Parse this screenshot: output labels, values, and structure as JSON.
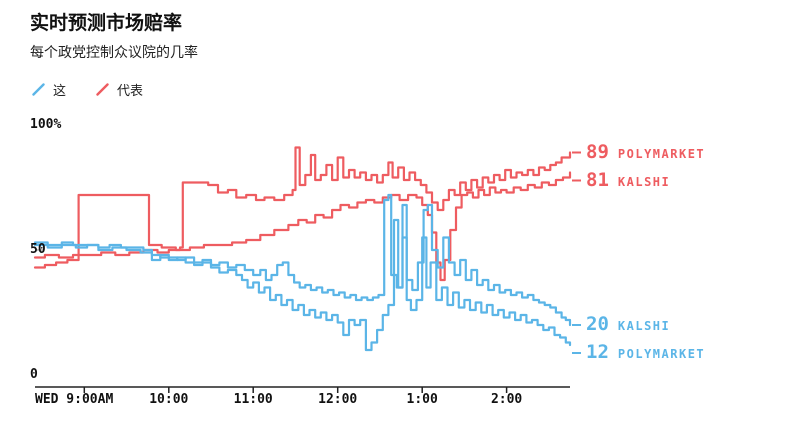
{
  "legend": {
    "items": [
      {
        "label": "这",
        "color": "#5bb5e7"
      },
      {
        "label": "代表",
        "color": "#ee5c60"
      }
    ]
  },
  "chart_data": {
    "type": "line",
    "title": "实时预测市场赔率",
    "subtitle": "每个政党控制众议院的几率",
    "x_unit": "minutes after Wednesday 9:00AM",
    "t_min": -35,
    "t_max": 345,
    "ylim": [
      0,
      100
    ],
    "grid": "off",
    "legend_position": "top-left",
    "x_ticks": [
      {
        "t": 0,
        "label": "WED 9:00AM"
      },
      {
        "t": 60,
        "label": "10:00"
      },
      {
        "t": 120,
        "label": "11:00"
      },
      {
        "t": 180,
        "label": "12:00"
      },
      {
        "t": 240,
        "label": "1:00"
      },
      {
        "t": 300,
        "label": "2:00"
      }
    ],
    "y_ticks": [
      {
        "v": 100,
        "label": "100%"
      },
      {
        "v": 50,
        "label": "50"
      },
      {
        "v": 0,
        "label": "0"
      }
    ],
    "series": [
      {
        "id": "rep-kalshi",
        "name": "代表 KALSHI",
        "color": "#ee5c60",
        "end_label": {
          "value": "81",
          "source": "KALSHI"
        },
        "points": [
          [
            -35,
            43
          ],
          [
            -28,
            44
          ],
          [
            -20,
            45
          ],
          [
            -12,
            46
          ],
          [
            -5,
            46
          ],
          [
            -4,
            72
          ],
          [
            5,
            72
          ],
          [
            15,
            72
          ],
          [
            25,
            72
          ],
          [
            35,
            72
          ],
          [
            44,
            72
          ],
          [
            46,
            52
          ],
          [
            55,
            51
          ],
          [
            65,
            50
          ],
          [
            75,
            51
          ],
          [
            85,
            52
          ],
          [
            95,
            52
          ],
          [
            105,
            53
          ],
          [
            115,
            54
          ],
          [
            125,
            56
          ],
          [
            135,
            58
          ],
          [
            145,
            60
          ],
          [
            152,
            62
          ],
          [
            158,
            61
          ],
          [
            164,
            64
          ],
          [
            170,
            63
          ],
          [
            176,
            66
          ],
          [
            182,
            68
          ],
          [
            188,
            67
          ],
          [
            194,
            69
          ],
          [
            200,
            70
          ],
          [
            206,
            69
          ],
          [
            212,
            71
          ],
          [
            218,
            72
          ],
          [
            224,
            70
          ],
          [
            230,
            72
          ],
          [
            236,
            71
          ],
          [
            240,
            68
          ],
          [
            244,
            64
          ],
          [
            247,
            57
          ],
          [
            250,
            45
          ],
          [
            253,
            38
          ],
          [
            256,
            46
          ],
          [
            260,
            58
          ],
          [
            264,
            67
          ],
          [
            268,
            72
          ],
          [
            272,
            73
          ],
          [
            276,
            71
          ],
          [
            280,
            74
          ],
          [
            284,
            72
          ],
          [
            288,
            75
          ],
          [
            292,
            73
          ],
          [
            296,
            74
          ],
          [
            300,
            73
          ],
          [
            305,
            75
          ],
          [
            310,
            74
          ],
          [
            315,
            76
          ],
          [
            320,
            75
          ],
          [
            325,
            77
          ],
          [
            330,
            76
          ],
          [
            335,
            78
          ],
          [
            340,
            79
          ],
          [
            345,
            81
          ]
        ]
      },
      {
        "id": "rep-polymarket",
        "name": "代表 POLYMARKET",
        "color": "#ee5c60",
        "end_label": {
          "value": "89",
          "source": "POLYMARKET"
        },
        "points": [
          [
            -35,
            47
          ],
          [
            -28,
            48
          ],
          [
            -18,
            47
          ],
          [
            -8,
            48
          ],
          [
            2,
            48
          ],
          [
            12,
            49
          ],
          [
            22,
            48
          ],
          [
            32,
            49
          ],
          [
            42,
            50
          ],
          [
            52,
            49
          ],
          [
            60,
            50
          ],
          [
            68,
            51
          ],
          [
            70,
            77
          ],
          [
            80,
            77
          ],
          [
            88,
            76
          ],
          [
            95,
            73
          ],
          [
            102,
            74
          ],
          [
            108,
            71
          ],
          [
            115,
            72
          ],
          [
            122,
            70
          ],
          [
            128,
            71
          ],
          [
            135,
            70
          ],
          [
            142,
            72
          ],
          [
            148,
            74
          ],
          [
            150,
            91
          ],
          [
            153,
            76
          ],
          [
            157,
            80
          ],
          [
            161,
            88
          ],
          [
            164,
            78
          ],
          [
            168,
            80
          ],
          [
            172,
            84
          ],
          [
            176,
            78
          ],
          [
            180,
            87
          ],
          [
            184,
            79
          ],
          [
            188,
            82
          ],
          [
            192,
            79
          ],
          [
            196,
            81
          ],
          [
            200,
            78
          ],
          [
            204,
            80
          ],
          [
            208,
            77
          ],
          [
            212,
            80
          ],
          [
            216,
            85
          ],
          [
            219,
            79
          ],
          [
            223,
            83
          ],
          [
            227,
            78
          ],
          [
            231,
            81
          ],
          [
            235,
            78
          ],
          [
            239,
            76
          ],
          [
            243,
            73
          ],
          [
            247,
            69
          ],
          [
            251,
            66
          ],
          [
            255,
            70
          ],
          [
            259,
            74
          ],
          [
            263,
            72
          ],
          [
            267,
            77
          ],
          [
            271,
            74
          ],
          [
            275,
            78
          ],
          [
            279,
            75
          ],
          [
            283,
            79
          ],
          [
            287,
            77
          ],
          [
            291,
            80
          ],
          [
            295,
            78
          ],
          [
            299,
            82
          ],
          [
            303,
            79
          ],
          [
            307,
            81
          ],
          [
            311,
            80
          ],
          [
            315,
            82
          ],
          [
            319,
            80
          ],
          [
            323,
            83
          ],
          [
            327,
            82
          ],
          [
            331,
            84
          ],
          [
            335,
            85
          ],
          [
            339,
            87
          ],
          [
            345,
            89
          ]
        ]
      },
      {
        "id": "dem-kalshi",
        "name": "这 KALSHI",
        "color": "#5bb5e7",
        "end_label": {
          "value": "20",
          "source": "KALSHI"
        },
        "points": [
          [
            -35,
            52
          ],
          [
            -26,
            51
          ],
          [
            -16,
            52
          ],
          [
            -6,
            51
          ],
          [
            2,
            52
          ],
          [
            10,
            51
          ],
          [
            18,
            52
          ],
          [
            26,
            51
          ],
          [
            34,
            51
          ],
          [
            42,
            50
          ],
          [
            48,
            46
          ],
          [
            54,
            48
          ],
          [
            60,
            47
          ],
          [
            66,
            46
          ],
          [
            72,
            47
          ],
          [
            78,
            45
          ],
          [
            84,
            46
          ],
          [
            90,
            44
          ],
          [
            96,
            45
          ],
          [
            102,
            43
          ],
          [
            108,
            44
          ],
          [
            114,
            42
          ],
          [
            120,
            40
          ],
          [
            125,
            42
          ],
          [
            129,
            38
          ],
          [
            133,
            40
          ],
          [
            137,
            44
          ],
          [
            141,
            45
          ],
          [
            145,
            40
          ],
          [
            149,
            37
          ],
          [
            153,
            35
          ],
          [
            157,
            36
          ],
          [
            161,
            34
          ],
          [
            165,
            35
          ],
          [
            169,
            33
          ],
          [
            173,
            34
          ],
          [
            177,
            32
          ],
          [
            181,
            33
          ],
          [
            185,
            31
          ],
          [
            189,
            32
          ],
          [
            193,
            30
          ],
          [
            197,
            31
          ],
          [
            201,
            30
          ],
          [
            205,
            31
          ],
          [
            209,
            32
          ],
          [
            213,
            70
          ],
          [
            216,
            72
          ],
          [
            218,
            40
          ],
          [
            222,
            35
          ],
          [
            226,
            55
          ],
          [
            229,
            38
          ],
          [
            233,
            34
          ],
          [
            237,
            45
          ],
          [
            241,
            66
          ],
          [
            244,
            68
          ],
          [
            247,
            50
          ],
          [
            251,
            43
          ],
          [
            255,
            55
          ],
          [
            259,
            45
          ],
          [
            263,
            40
          ],
          [
            267,
            46
          ],
          [
            271,
            38
          ],
          [
            275,
            42
          ],
          [
            279,
            36
          ],
          [
            283,
            38
          ],
          [
            287,
            34
          ],
          [
            291,
            36
          ],
          [
            295,
            33
          ],
          [
            299,
            34
          ],
          [
            303,
            32
          ],
          [
            307,
            33
          ],
          [
            311,
            31
          ],
          [
            315,
            32
          ],
          [
            319,
            30
          ],
          [
            323,
            29
          ],
          [
            327,
            28
          ],
          [
            331,
            27
          ],
          [
            335,
            25
          ],
          [
            339,
            23
          ],
          [
            342,
            22
          ],
          [
            345,
            20
          ]
        ]
      },
      {
        "id": "dem-polymarket",
        "name": "这 POLYMARKET",
        "color": "#5bb5e7",
        "end_label": {
          "value": "12",
          "source": "POLYMARKET"
        },
        "points": [
          [
            -35,
            53
          ],
          [
            -26,
            52
          ],
          [
            -16,
            53
          ],
          [
            -8,
            52
          ],
          [
            0,
            52
          ],
          [
            10,
            50
          ],
          [
            20,
            51
          ],
          [
            30,
            50
          ],
          [
            40,
            49
          ],
          [
            48,
            48
          ],
          [
            54,
            47
          ],
          [
            60,
            46
          ],
          [
            66,
            47
          ],
          [
            72,
            45
          ],
          [
            78,
            44
          ],
          [
            84,
            45
          ],
          [
            90,
            43
          ],
          [
            96,
            41
          ],
          [
            102,
            42
          ],
          [
            108,
            40
          ],
          [
            112,
            38
          ],
          [
            116,
            35
          ],
          [
            120,
            37
          ],
          [
            124,
            33
          ],
          [
            128,
            35
          ],
          [
            132,
            30
          ],
          [
            136,
            32
          ],
          [
            140,
            28
          ],
          [
            144,
            30
          ],
          [
            148,
            26
          ],
          [
            152,
            28
          ],
          [
            156,
            24
          ],
          [
            160,
            26
          ],
          [
            164,
            23
          ],
          [
            168,
            25
          ],
          [
            172,
            22
          ],
          [
            176,
            24
          ],
          [
            180,
            21
          ],
          [
            184,
            16
          ],
          [
            188,
            22
          ],
          [
            192,
            20
          ],
          [
            196,
            22
          ],
          [
            200,
            10
          ],
          [
            204,
            13
          ],
          [
            208,
            18
          ],
          [
            212,
            24
          ],
          [
            216,
            28
          ],
          [
            220,
            62
          ],
          [
            223,
            35
          ],
          [
            226,
            68
          ],
          [
            229,
            30
          ],
          [
            232,
            26
          ],
          [
            236,
            30
          ],
          [
            240,
            55
          ],
          [
            243,
            35
          ],
          [
            246,
            45
          ],
          [
            250,
            30
          ],
          [
            254,
            35
          ],
          [
            258,
            28
          ],
          [
            262,
            33
          ],
          [
            266,
            27
          ],
          [
            270,
            30
          ],
          [
            274,
            26
          ],
          [
            278,
            29
          ],
          [
            282,
            25
          ],
          [
            286,
            28
          ],
          [
            290,
            24
          ],
          [
            294,
            26
          ],
          [
            298,
            23
          ],
          [
            302,
            25
          ],
          [
            306,
            22
          ],
          [
            310,
            24
          ],
          [
            314,
            21
          ],
          [
            318,
            22
          ],
          [
            322,
            20
          ],
          [
            326,
            18
          ],
          [
            330,
            19
          ],
          [
            334,
            16
          ],
          [
            338,
            15
          ],
          [
            342,
            13
          ],
          [
            345,
            12
          ]
        ]
      }
    ]
  }
}
